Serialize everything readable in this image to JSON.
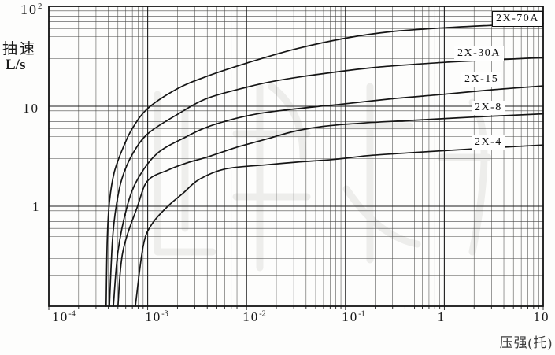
{
  "chart_data": {
    "type": "line",
    "title": "",
    "x_axis": {
      "label": "压强(托)",
      "scale": "log",
      "min": 0.0001,
      "max": 10,
      "tick_values": [
        0.0001,
        0.001,
        0.01,
        0.1,
        1,
        10
      ],
      "ticks": [
        {
          "base": "10",
          "sup": "-4"
        },
        {
          "base": "10",
          "sup": "-3"
        },
        {
          "base": "10",
          "sup": "-2"
        },
        {
          "base": "10",
          "sup": "-1"
        },
        {
          "base": "1"
        },
        {
          "base": "10"
        }
      ]
    },
    "y_axis": {
      "label_title": "抽速",
      "label_unit": "L/s",
      "scale": "log",
      "min": 0.1,
      "max": 100,
      "tick_values": [
        100,
        10,
        1
      ],
      "ticks": [
        {
          "base": "10",
          "sup": "2"
        },
        {
          "base": "10"
        },
        {
          "base": "1"
        }
      ]
    },
    "grid": "log-log full minor grid",
    "line_color": "#151515",
    "series": [
      {
        "name": "2X-70A",
        "boxed": true,
        "points": [
          [
            0.00038,
            0.1
          ],
          [
            0.00039,
            0.45
          ],
          [
            0.00041,
            1.1
          ],
          [
            0.00046,
            2.2
          ],
          [
            0.00056,
            3.8
          ],
          [
            0.0007,
            6.0
          ],
          [
            0.001,
            9.5
          ],
          [
            0.002,
            15
          ],
          [
            0.004,
            20
          ],
          [
            0.01,
            27
          ],
          [
            0.03,
            37
          ],
          [
            0.1,
            48
          ],
          [
            0.3,
            56
          ],
          [
            1,
            61
          ],
          [
            3,
            64.5
          ],
          [
            10,
            68
          ]
        ]
      },
      {
        "name": "2X-30A",
        "boxed": false,
        "points": [
          [
            0.00041,
            0.1
          ],
          [
            0.00044,
            0.45
          ],
          [
            0.00048,
            1.0
          ],
          [
            0.00055,
            1.9
          ],
          [
            0.0007,
            3.3
          ],
          [
            0.001,
            5.3
          ],
          [
            0.002,
            8.3
          ],
          [
            0.004,
            12
          ],
          [
            0.01,
            15.5
          ],
          [
            0.02,
            18
          ],
          [
            0.05,
            20.7
          ],
          [
            0.2,
            24.5
          ],
          [
            1,
            27.5
          ],
          [
            3,
            29
          ],
          [
            10,
            30.8
          ]
        ]
      },
      {
        "name": "2X-15",
        "boxed": false,
        "points": [
          [
            0.00045,
            0.1
          ],
          [
            0.0005,
            0.35
          ],
          [
            0.00062,
            1.0
          ],
          [
            0.0008,
            1.9
          ],
          [
            0.00126,
            3.4
          ],
          [
            0.0025,
            5.0
          ],
          [
            0.004,
            6.2
          ],
          [
            0.008,
            7.6
          ],
          [
            0.016,
            8.7
          ],
          [
            0.05,
            9.9
          ],
          [
            0.085,
            10.4
          ],
          [
            0.3,
            11.9
          ],
          [
            1,
            13.2
          ],
          [
            3,
            14.6
          ],
          [
            10,
            16
          ]
        ]
      },
      {
        "name": "2X-8",
        "boxed": false,
        "points": [
          [
            0.0005,
            0.1
          ],
          [
            0.00056,
            0.35
          ],
          [
            0.00079,
            1.0
          ],
          [
            0.001,
            1.8
          ],
          [
            0.0016,
            2.3
          ],
          [
            0.0026,
            2.75
          ],
          [
            0.004,
            3.1
          ],
          [
            0.008,
            3.9
          ],
          [
            0.016,
            4.7
          ],
          [
            0.03,
            5.6
          ],
          [
            0.06,
            6.3
          ],
          [
            0.15,
            6.8
          ],
          [
            0.44,
            7.2
          ],
          [
            2,
            7.8
          ],
          [
            10,
            8.4
          ]
        ]
      },
      {
        "name": "2X-4",
        "boxed": false,
        "points": [
          [
            0.00075,
            0.1
          ],
          [
            0.0009,
            0.4
          ],
          [
            0.0011,
            0.66
          ],
          [
            0.0016,
            1.0
          ],
          [
            0.0023,
            1.36
          ],
          [
            0.0033,
            1.85
          ],
          [
            0.0061,
            2.36
          ],
          [
            0.016,
            2.6
          ],
          [
            0.032,
            2.76
          ],
          [
            0.08,
            2.95
          ],
          [
            0.166,
            3.2
          ],
          [
            0.5,
            3.45
          ],
          [
            2,
            3.75
          ],
          [
            10,
            4.1
          ]
        ]
      }
    ]
  }
}
